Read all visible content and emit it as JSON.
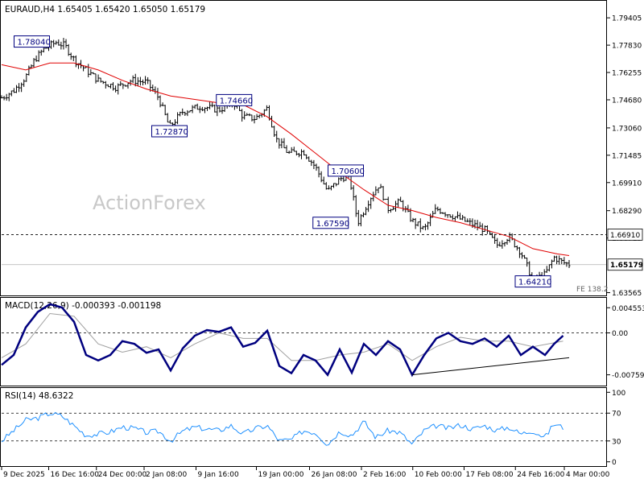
{
  "chart_data": [
    {
      "type": "candlestick",
      "panel": "price",
      "header": "EURAUD,H4  1.65405 1.65420 1.65050 1.65179",
      "watermark": "ActionForex",
      "yticks": [
        "1.79405",
        "1.77830",
        "1.76255",
        "1.74680",
        "1.73060",
        "1.71485",
        "1.69910",
        "1.68290",
        "1.66715",
        "1.63565"
      ],
      "yvals": [
        1.79405,
        1.7783,
        1.76255,
        1.7468,
        1.7306,
        1.71485,
        1.6991,
        1.6829,
        1.66715,
        1.63565
      ],
      "ylim": [
        1.6345,
        1.8034
      ],
      "current_price": {
        "label": "1.65179",
        "value": 1.65179
      },
      "horizontal_level": {
        "label": "1.66910",
        "value": 1.6691
      },
      "fe_label": "FE 138.2",
      "annotations": [
        {
          "label": "1.78040",
          "x": 0.05,
          "value": 1.7804
        },
        {
          "label": "1.74660",
          "x": 0.385,
          "value": 1.7466
        },
        {
          "label": "1.72870",
          "x": 0.278,
          "value": 1.7287
        },
        {
          "label": "1.70600",
          "x": 0.57,
          "value": 1.706
        },
        {
          "label": "1.67590",
          "x": 0.545,
          "value": 1.6759
        },
        {
          "label": "1.64210",
          "x": 0.88,
          "value": 1.6421
        }
      ],
      "price_path": [
        [
          0.0,
          1.748
        ],
        [
          0.02,
          1.752
        ],
        [
          0.04,
          1.76
        ],
        [
          0.055,
          1.77
        ],
        [
          0.07,
          1.776
        ],
        [
          0.09,
          1.78
        ],
        [
          0.105,
          1.778
        ],
        [
          0.12,
          1.77
        ],
        [
          0.14,
          1.764
        ],
        [
          0.16,
          1.758
        ],
        [
          0.19,
          1.754
        ],
        [
          0.215,
          1.758
        ],
        [
          0.24,
          1.757
        ],
        [
          0.26,
          1.748
        ],
        [
          0.278,
          1.731
        ],
        [
          0.3,
          1.74
        ],
        [
          0.33,
          1.743
        ],
        [
          0.36,
          1.741
        ],
        [
          0.385,
          1.745
        ],
        [
          0.4,
          1.737
        ],
        [
          0.42,
          1.736
        ],
        [
          0.44,
          1.742
        ],
        [
          0.455,
          1.724
        ],
        [
          0.475,
          1.716
        ],
        [
          0.5,
          1.717
        ],
        [
          0.52,
          1.708
        ],
        [
          0.54,
          1.694
        ],
        [
          0.56,
          1.701
        ],
        [
          0.575,
          1.704
        ],
        [
          0.59,
          1.676
        ],
        [
          0.61,
          1.69
        ],
        [
          0.625,
          1.698
        ],
        [
          0.64,
          1.684
        ],
        [
          0.66,
          1.688
        ],
        [
          0.68,
          1.677
        ],
        [
          0.7,
          1.672
        ],
        [
          0.72,
          1.684
        ],
        [
          0.74,
          1.681
        ],
        [
          0.76,
          1.678
        ],
        [
          0.78,
          1.675
        ],
        [
          0.8,
          1.672
        ],
        [
          0.82,
          1.663
        ],
        [
          0.84,
          1.668
        ],
        [
          0.86,
          1.659
        ],
        [
          0.88,
          1.643
        ],
        [
          0.9,
          1.646
        ],
        [
          0.915,
          1.656
        ],
        [
          0.93,
          1.653
        ],
        [
          0.94,
          1.652
        ]
      ],
      "ma_path": [
        [
          0.0,
          1.767
        ],
        [
          0.04,
          1.764
        ],
        [
          0.08,
          1.768
        ],
        [
          0.12,
          1.768
        ],
        [
          0.16,
          1.764
        ],
        [
          0.2,
          1.758
        ],
        [
          0.24,
          1.753
        ],
        [
          0.28,
          1.749
        ],
        [
          0.32,
          1.747
        ],
        [
          0.36,
          1.745
        ],
        [
          0.4,
          1.744
        ],
        [
          0.44,
          1.737
        ],
        [
          0.48,
          1.727
        ],
        [
          0.52,
          1.716
        ],
        [
          0.56,
          1.705
        ],
        [
          0.6,
          1.695
        ],
        [
          0.64,
          1.686
        ],
        [
          0.68,
          1.683
        ],
        [
          0.72,
          1.679
        ],
        [
          0.76,
          1.676
        ],
        [
          0.8,
          1.672
        ],
        [
          0.84,
          1.668
        ],
        [
          0.88,
          1.661
        ],
        [
          0.92,
          1.658
        ],
        [
          0.94,
          1.657
        ]
      ]
    },
    {
      "type": "line",
      "panel": "macd",
      "header": "MACD(12,26,9) -0.000393 -0.001198",
      "yticks": [
        "0.004553",
        "0.00",
        "-0.007593"
      ],
      "yvals": [
        0.004553,
        0.0,
        -0.007593
      ],
      "ylim": [
        -0.0094,
        0.0062
      ],
      "current_label": "0.00",
      "macd_path": [
        [
          0.0,
          -0.0058
        ],
        [
          0.02,
          -0.004
        ],
        [
          0.04,
          0.001
        ],
        [
          0.06,
          0.0038
        ],
        [
          0.08,
          0.0052
        ],
        [
          0.1,
          0.0046
        ],
        [
          0.12,
          0.002
        ],
        [
          0.14,
          -0.004
        ],
        [
          0.16,
          -0.005
        ],
        [
          0.18,
          -0.004
        ],
        [
          0.2,
          -0.0015
        ],
        [
          0.22,
          -0.002
        ],
        [
          0.24,
          -0.0036
        ],
        [
          0.26,
          -0.003
        ],
        [
          0.28,
          -0.0068
        ],
        [
          0.3,
          -0.0028
        ],
        [
          0.32,
          -0.0005
        ],
        [
          0.34,
          0.0005
        ],
        [
          0.36,
          0.0002
        ],
        [
          0.38,
          0.001
        ],
        [
          0.4,
          -0.0025
        ],
        [
          0.42,
          -0.0018
        ],
        [
          0.44,
          0.0004
        ],
        [
          0.46,
          -0.006
        ],
        [
          0.48,
          -0.0073
        ],
        [
          0.5,
          -0.004
        ],
        [
          0.52,
          -0.005
        ],
        [
          0.54,
          -0.0076
        ],
        [
          0.56,
          -0.003
        ],
        [
          0.58,
          -0.0072
        ],
        [
          0.6,
          -0.002
        ],
        [
          0.62,
          -0.004
        ],
        [
          0.64,
          -0.0015
        ],
        [
          0.66,
          -0.003
        ],
        [
          0.68,
          -0.0076
        ],
        [
          0.7,
          -0.004
        ],
        [
          0.72,
          -0.001
        ],
        [
          0.74,
          0.0
        ],
        [
          0.76,
          -0.0015
        ],
        [
          0.78,
          -0.002
        ],
        [
          0.8,
          -0.001
        ],
        [
          0.82,
          -0.0025
        ],
        [
          0.84,
          -0.0005
        ],
        [
          0.86,
          -0.004
        ],
        [
          0.88,
          -0.0025
        ],
        [
          0.9,
          -0.004
        ],
        [
          0.915,
          -0.002
        ],
        [
          0.93,
          -0.0005
        ]
      ],
      "signal_path": [
        [
          0.0,
          -0.0045
        ],
        [
          0.04,
          -0.002
        ],
        [
          0.08,
          0.0035
        ],
        [
          0.12,
          0.003
        ],
        [
          0.16,
          -0.002
        ],
        [
          0.2,
          -0.0035
        ],
        [
          0.24,
          -0.0025
        ],
        [
          0.28,
          -0.0045
        ],
        [
          0.32,
          -0.002
        ],
        [
          0.36,
          0.0
        ],
        [
          0.4,
          -0.001
        ],
        [
          0.44,
          -0.001
        ],
        [
          0.48,
          -0.005
        ],
        [
          0.52,
          -0.005
        ],
        [
          0.56,
          -0.004
        ],
        [
          0.6,
          -0.0035
        ],
        [
          0.64,
          -0.002
        ],
        [
          0.68,
          -0.005
        ],
        [
          0.72,
          -0.0025
        ],
        [
          0.76,
          -0.0008
        ],
        [
          0.8,
          -0.0015
        ],
        [
          0.84,
          -0.0015
        ],
        [
          0.88,
          -0.0025
        ],
        [
          0.93,
          -0.0015
        ]
      ],
      "trendline": [
        [
          0.68,
          -0.0076
        ],
        [
          0.94,
          -0.0045
        ]
      ]
    },
    {
      "type": "line",
      "panel": "rsi",
      "header": "RSI(14) 48.6322",
      "yticks": [
        "100",
        "70",
        "30",
        "0"
      ],
      "yvals": [
        100,
        70,
        30,
        0
      ],
      "ylim": [
        -5,
        105
      ],
      "levels": [
        70,
        30
      ],
      "rsi_path": [
        [
          0.0,
          30
        ],
        [
          0.02,
          45
        ],
        [
          0.04,
          60
        ],
        [
          0.06,
          63
        ],
        [
          0.08,
          70
        ],
        [
          0.1,
          66
        ],
        [
          0.12,
          52
        ],
        [
          0.14,
          38
        ],
        [
          0.16,
          40
        ],
        [
          0.18,
          43
        ],
        [
          0.2,
          50
        ],
        [
          0.22,
          48
        ],
        [
          0.24,
          42
        ],
        [
          0.26,
          44
        ],
        [
          0.28,
          30
        ],
        [
          0.3,
          44
        ],
        [
          0.32,
          50
        ],
        [
          0.34,
          47
        ],
        [
          0.36,
          45
        ],
        [
          0.38,
          52
        ],
        [
          0.4,
          40
        ],
        [
          0.42,
          48
        ],
        [
          0.44,
          52
        ],
        [
          0.46,
          30
        ],
        [
          0.48,
          32
        ],
        [
          0.5,
          45
        ],
        [
          0.52,
          42
        ],
        [
          0.54,
          25
        ],
        [
          0.56,
          44
        ],
        [
          0.58,
          38
        ],
        [
          0.6,
          58
        ],
        [
          0.62,
          35
        ],
        [
          0.64,
          45
        ],
        [
          0.66,
          42
        ],
        [
          0.68,
          25
        ],
        [
          0.7,
          45
        ],
        [
          0.72,
          52
        ],
        [
          0.74,
          48
        ],
        [
          0.76,
          53
        ],
        [
          0.78,
          47
        ],
        [
          0.8,
          52
        ],
        [
          0.82,
          45
        ],
        [
          0.84,
          50
        ],
        [
          0.86,
          40
        ],
        [
          0.88,
          45
        ],
        [
          0.9,
          35
        ],
        [
          0.915,
          55
        ],
        [
          0.93,
          49
        ]
      ]
    },
    {
      "type": "axis",
      "panel": "x-axis",
      "xticks": [
        {
          "label": "9 Dec 2025",
          "x": 0.0
        },
        {
          "label": "16 Dec 16:00",
          "x": 0.078
        },
        {
          "label": "24 Dec 00:00",
          "x": 0.157
        },
        {
          "label": "2 Jan 08:00",
          "x": 0.236
        },
        {
          "label": "9 Jan 16:00",
          "x": 0.322
        },
        {
          "label": "19 Jan 00:00",
          "x": 0.422
        },
        {
          "label": "26 Jan 08:00",
          "x": 0.51
        },
        {
          "label": "2 Feb 16:00",
          "x": 0.596
        },
        {
          "label": "10 Feb 00:00",
          "x": 0.681
        },
        {
          "label": "17 Feb 08:00",
          "x": 0.766
        },
        {
          "label": "24 Feb 16:00",
          "x": 0.851
        },
        {
          "label": "4 Mar 00:00",
          "x": 0.932
        }
      ]
    }
  ],
  "colors": {
    "candle": "#000000",
    "ma": "#e00000",
    "macd": "#00007f",
    "signal": "#a0a0a0",
    "rsi": "#1e90ff",
    "label_bg": "#ffffff",
    "label_border": "#00007f",
    "grid": "#000000",
    "watermark": "#c8c8c8"
  }
}
